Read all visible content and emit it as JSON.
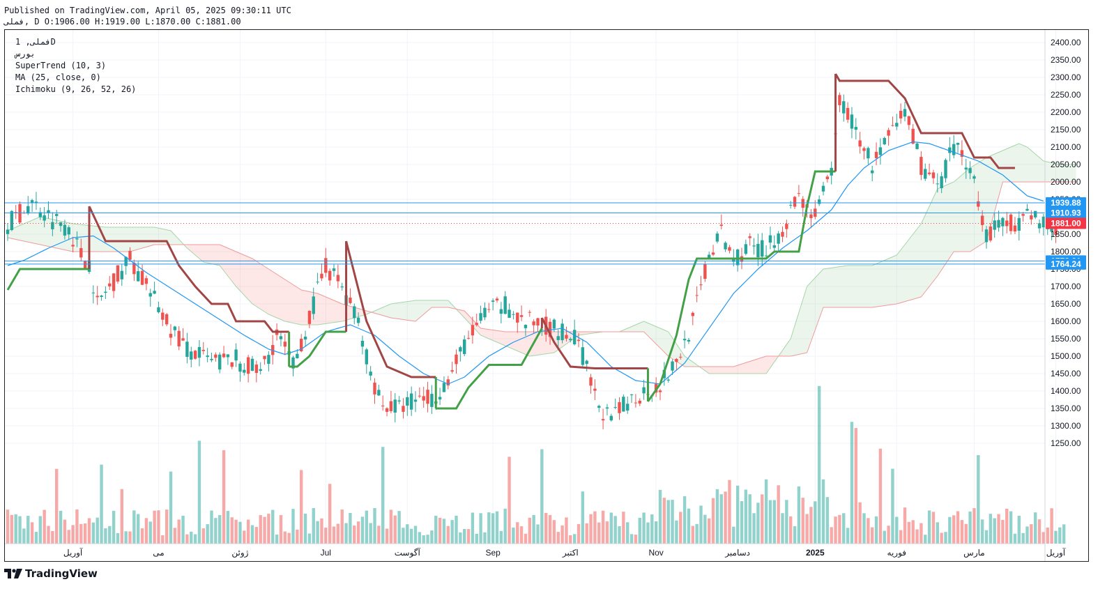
{
  "header": {
    "published": "Published on TradingView.com, April 05, 2025 09:30:11 UTC",
    "ohlc_line": "فملی, D O:1906.00 H:1919.00 L:1870.00 C:1881.00"
  },
  "legend": {
    "symbol_line": "فملی, 1D",
    "exchange_line": "بورس",
    "indicators": [
      "SuperTrend (10, 3)",
      "MA (25, close, 0)",
      "Ichimoku (9, 26, 52, 26)"
    ]
  },
  "brand": {
    "name": "TradingView"
  },
  "colors": {
    "up": "#26a69a",
    "down": "#ef5350",
    "supertrend_up": "#43a047",
    "supertrend_down": "#a14545",
    "ma": "#2196f3",
    "hline": "#2196f3",
    "last_price": "#f23645"
  },
  "chart_data": {
    "type": "candlestick",
    "y_range": [
      1200,
      2430
    ],
    "y_ticks": [
      1250,
      1300,
      1350,
      1400,
      1450,
      1500,
      1550,
      1600,
      1650,
      1700,
      1750,
      1800,
      1850,
      1900,
      1950,
      2000,
      2050,
      2100,
      2150,
      2200,
      2250,
      2300,
      2350,
      2400
    ],
    "x_labels": [
      "آوریل",
      "می",
      "ژوئن",
      "Jul",
      "آگوست",
      "Sep",
      "اکتبر",
      "Nov",
      "دسامبر",
      "2025",
      "فوریه",
      "مارس",
      "آوریل"
    ],
    "x_label_bars": [
      16,
      37,
      57,
      78,
      98,
      119,
      138,
      159,
      179,
      198,
      218,
      237,
      257
    ],
    "horizontal_lines": [
      {
        "value": 1939.88,
        "label": "1939.88"
      },
      {
        "value": 1910.93,
        "label": "1910.93"
      },
      {
        "value": 1773.21,
        "label": "1773.21"
      },
      {
        "value": 1764.24,
        "label": "1764.24"
      }
    ],
    "last_price": {
      "value": 1881.0,
      "label": "1881.00"
    },
    "last_bar": {
      "open": 1906.0,
      "high": 1919.0,
      "low": 1870.0,
      "close": 1881.0
    },
    "price_anchors": [
      [
        0,
        1880
      ],
      [
        6,
        1940
      ],
      [
        10,
        1900
      ],
      [
        15,
        1870
      ],
      [
        18,
        1790
      ],
      [
        20,
        1770
      ],
      [
        22,
        1650
      ],
      [
        25,
        1700
      ],
      [
        30,
        1780
      ],
      [
        34,
        1700
      ],
      [
        40,
        1580
      ],
      [
        44,
        1520
      ],
      [
        50,
        1480
      ],
      [
        56,
        1490
      ],
      [
        62,
        1450
      ],
      [
        66,
        1560
      ],
      [
        70,
        1470
      ],
      [
        74,
        1610
      ],
      [
        78,
        1760
      ],
      [
        82,
        1700
      ],
      [
        86,
        1600
      ],
      [
        89,
        1450
      ],
      [
        92,
        1360
      ],
      [
        96,
        1350
      ],
      [
        100,
        1380
      ],
      [
        104,
        1380
      ],
      [
        108,
        1430
      ],
      [
        112,
        1530
      ],
      [
        117,
        1620
      ],
      [
        122,
        1650
      ],
      [
        126,
        1600
      ],
      [
        132,
        1590
      ],
      [
        136,
        1570
      ],
      [
        140,
        1540
      ],
      [
        144,
        1380
      ],
      [
        148,
        1310
      ],
      [
        152,
        1370
      ],
      [
        156,
        1400
      ],
      [
        160,
        1420
      ],
      [
        164,
        1480
      ],
      [
        168,
        1600
      ],
      [
        172,
        1790
      ],
      [
        175,
        1850
      ],
      [
        178,
        1780
      ],
      [
        182,
        1820
      ],
      [
        186,
        1800
      ],
      [
        190,
        1870
      ],
      [
        194,
        1960
      ],
      [
        198,
        1900
      ],
      [
        202,
        2020
      ],
      [
        204,
        2240
      ],
      [
        208,
        2150
      ],
      [
        212,
        2050
      ],
      [
        216,
        2120
      ],
      [
        220,
        2200
      ],
      [
        224,
        2050
      ],
      [
        228,
        1980
      ],
      [
        232,
        2100
      ],
      [
        236,
        2050
      ],
      [
        240,
        1850
      ],
      [
        244,
        1880
      ],
      [
        248,
        1890
      ],
      [
        252,
        1900
      ],
      [
        256,
        1870
      ],
      [
        258,
        1881
      ]
    ],
    "supertrend": [
      [
        0,
        1690,
        "up"
      ],
      [
        3,
        1750,
        "up"
      ],
      [
        20,
        1750,
        "up"
      ],
      [
        20,
        1930,
        "down"
      ],
      [
        24,
        1830,
        "down"
      ],
      [
        34,
        1830,
        "down"
      ],
      [
        39,
        1830,
        "down"
      ],
      [
        42,
        1760,
        "down"
      ],
      [
        46,
        1700,
        "down"
      ],
      [
        50,
        1650,
        "down"
      ],
      [
        54,
        1650,
        "down"
      ],
      [
        56,
        1600,
        "down"
      ],
      [
        63,
        1600,
        "down"
      ],
      [
        65,
        1570,
        "down"
      ],
      [
        69,
        1570,
        "down"
      ],
      [
        69,
        1470,
        "up"
      ],
      [
        71,
        1470,
        "up"
      ],
      [
        74,
        1500,
        "up"
      ],
      [
        78,
        1570,
        "up"
      ],
      [
        83,
        1570,
        "up"
      ],
      [
        83,
        1830,
        "down"
      ],
      [
        88,
        1600,
        "down"
      ],
      [
        93,
        1470,
        "down"
      ],
      [
        99,
        1440,
        "down"
      ],
      [
        105,
        1440,
        "down"
      ],
      [
        105,
        1350,
        "up"
      ],
      [
        110,
        1350,
        "up"
      ],
      [
        113,
        1410,
        "up"
      ],
      [
        118,
        1475,
        "up"
      ],
      [
        126,
        1475,
        "up"
      ],
      [
        131,
        1580,
        "up"
      ],
      [
        131,
        1610,
        "down"
      ],
      [
        134,
        1540,
        "down"
      ],
      [
        138,
        1470,
        "down"
      ],
      [
        144,
        1465,
        "down"
      ],
      [
        157,
        1465,
        "down"
      ],
      [
        157,
        1370,
        "up"
      ],
      [
        160,
        1420,
        "up"
      ],
      [
        164,
        1560,
        "up"
      ],
      [
        167,
        1720,
        "up"
      ],
      [
        169,
        1780,
        "up"
      ],
      [
        182,
        1780,
        "up"
      ],
      [
        186,
        1780,
        "up"
      ],
      [
        188,
        1800,
        "up"
      ],
      [
        194,
        1800,
        "up"
      ],
      [
        196,
        1930,
        "up"
      ],
      [
        198,
        2030,
        "up"
      ],
      [
        203,
        2030,
        "up"
      ],
      [
        203,
        2310,
        "down"
      ],
      [
        204,
        2290,
        "down"
      ],
      [
        216,
        2290,
        "down"
      ],
      [
        220,
        2240,
        "down"
      ],
      [
        224,
        2140,
        "down"
      ],
      [
        234,
        2140,
        "down"
      ],
      [
        237,
        2070,
        "down"
      ],
      [
        241,
        2070,
        "down"
      ],
      [
        243,
        2040,
        "down"
      ],
      [
        247,
        2040,
        "down"
      ]
    ],
    "ma_anchors": [
      [
        0,
        1760
      ],
      [
        4,
        1775
      ],
      [
        10,
        1810
      ],
      [
        16,
        1840
      ],
      [
        21,
        1845
      ],
      [
        26,
        1810
      ],
      [
        34,
        1740
      ],
      [
        42,
        1680
      ],
      [
        50,
        1620
      ],
      [
        58,
        1560
      ],
      [
        64,
        1520
      ],
      [
        68,
        1505
      ],
      [
        72,
        1520
      ],
      [
        78,
        1570
      ],
      [
        84,
        1590
      ],
      [
        90,
        1560
      ],
      [
        96,
        1500
      ],
      [
        102,
        1450
      ],
      [
        108,
        1420
      ],
      [
        112,
        1440
      ],
      [
        118,
        1500
      ],
      [
        124,
        1540
      ],
      [
        130,
        1570
      ],
      [
        136,
        1580
      ],
      [
        142,
        1540
      ],
      [
        148,
        1470
      ],
      [
        154,
        1430
      ],
      [
        160,
        1420
      ],
      [
        166,
        1480
      ],
      [
        172,
        1580
      ],
      [
        178,
        1680
      ],
      [
        184,
        1750
      ],
      [
        190,
        1810
      ],
      [
        196,
        1860
      ],
      [
        202,
        1920
      ],
      [
        206,
        1990
      ],
      [
        210,
        2040
      ],
      [
        216,
        2090
      ],
      [
        222,
        2115
      ],
      [
        226,
        2110
      ],
      [
        232,
        2085
      ],
      [
        238,
        2060
      ],
      [
        244,
        2020
      ],
      [
        250,
        1960
      ],
      [
        254,
        1945
      ]
    ],
    "ichimoku_span_a": [
      [
        0,
        1860
      ],
      [
        8,
        1900
      ],
      [
        16,
        1880
      ],
      [
        24,
        1870
      ],
      [
        30,
        1870
      ],
      [
        36,
        1870
      ],
      [
        40,
        1860
      ],
      [
        44,
        1810
      ],
      [
        48,
        1770
      ],
      [
        52,
        1760
      ],
      [
        56,
        1700
      ],
      [
        60,
        1650
      ],
      [
        64,
        1620
      ],
      [
        68,
        1600
      ],
      [
        72,
        1590
      ],
      [
        76,
        1590
      ],
      [
        82,
        1600
      ],
      [
        88,
        1620
      ],
      [
        94,
        1650
      ],
      [
        100,
        1660
      ],
      [
        104,
        1660
      ],
      [
        108,
        1660
      ],
      [
        112,
        1610
      ],
      [
        116,
        1560
      ],
      [
        122,
        1530
      ],
      [
        128,
        1500
      ],
      [
        134,
        1510
      ],
      [
        140,
        1560
      ],
      [
        146,
        1570
      ],
      [
        150,
        1570
      ],
      [
        156,
        1600
      ],
      [
        162,
        1570
      ],
      [
        166,
        1500
      ],
      [
        172,
        1450
      ],
      [
        178,
        1450
      ],
      [
        186,
        1450
      ],
      [
        192,
        1550
      ],
      [
        196,
        1700
      ],
      [
        200,
        1750
      ],
      [
        206,
        1760
      ],
      [
        212,
        1760
      ],
      [
        218,
        1790
      ],
      [
        224,
        1880
      ],
      [
        228,
        1980
      ],
      [
        232,
        2000
      ],
      [
        236,
        2040
      ],
      [
        240,
        2070
      ],
      [
        244,
        2090
      ],
      [
        248,
        2110
      ],
      [
        250,
        2100
      ],
      [
        254,
        2060
      ],
      [
        258,
        2050
      ],
      [
        262,
        2050
      ]
    ],
    "ichimoku_span_b": [
      [
        0,
        1840
      ],
      [
        8,
        1820
      ],
      [
        16,
        1800
      ],
      [
        24,
        1800
      ],
      [
        30,
        1800
      ],
      [
        36,
        1820
      ],
      [
        40,
        1820
      ],
      [
        44,
        1820
      ],
      [
        48,
        1820
      ],
      [
        52,
        1820
      ],
      [
        56,
        1800
      ],
      [
        60,
        1780
      ],
      [
        64,
        1750
      ],
      [
        68,
        1720
      ],
      [
        72,
        1690
      ],
      [
        76,
        1680
      ],
      [
        82,
        1650
      ],
      [
        88,
        1630
      ],
      [
        94,
        1610
      ],
      [
        100,
        1600
      ],
      [
        104,
        1640
      ],
      [
        108,
        1640
      ],
      [
        112,
        1630
      ],
      [
        116,
        1580
      ],
      [
        122,
        1570
      ],
      [
        128,
        1570
      ],
      [
        134,
        1570
      ],
      [
        140,
        1570
      ],
      [
        146,
        1570
      ],
      [
        150,
        1570
      ],
      [
        156,
        1570
      ],
      [
        162,
        1500
      ],
      [
        166,
        1470
      ],
      [
        172,
        1470
      ],
      [
        178,
        1470
      ],
      [
        186,
        1500
      ],
      [
        192,
        1500
      ],
      [
        196,
        1510
      ],
      [
        200,
        1640
      ],
      [
        206,
        1640
      ],
      [
        212,
        1640
      ],
      [
        218,
        1650
      ],
      [
        224,
        1670
      ],
      [
        228,
        1730
      ],
      [
        232,
        1800
      ],
      [
        236,
        1800
      ],
      [
        240,
        1830
      ],
      [
        244,
        2000
      ],
      [
        248,
        2000
      ],
      [
        254,
        2000
      ],
      [
        258,
        2000
      ],
      [
        262,
        2000
      ]
    ]
  }
}
